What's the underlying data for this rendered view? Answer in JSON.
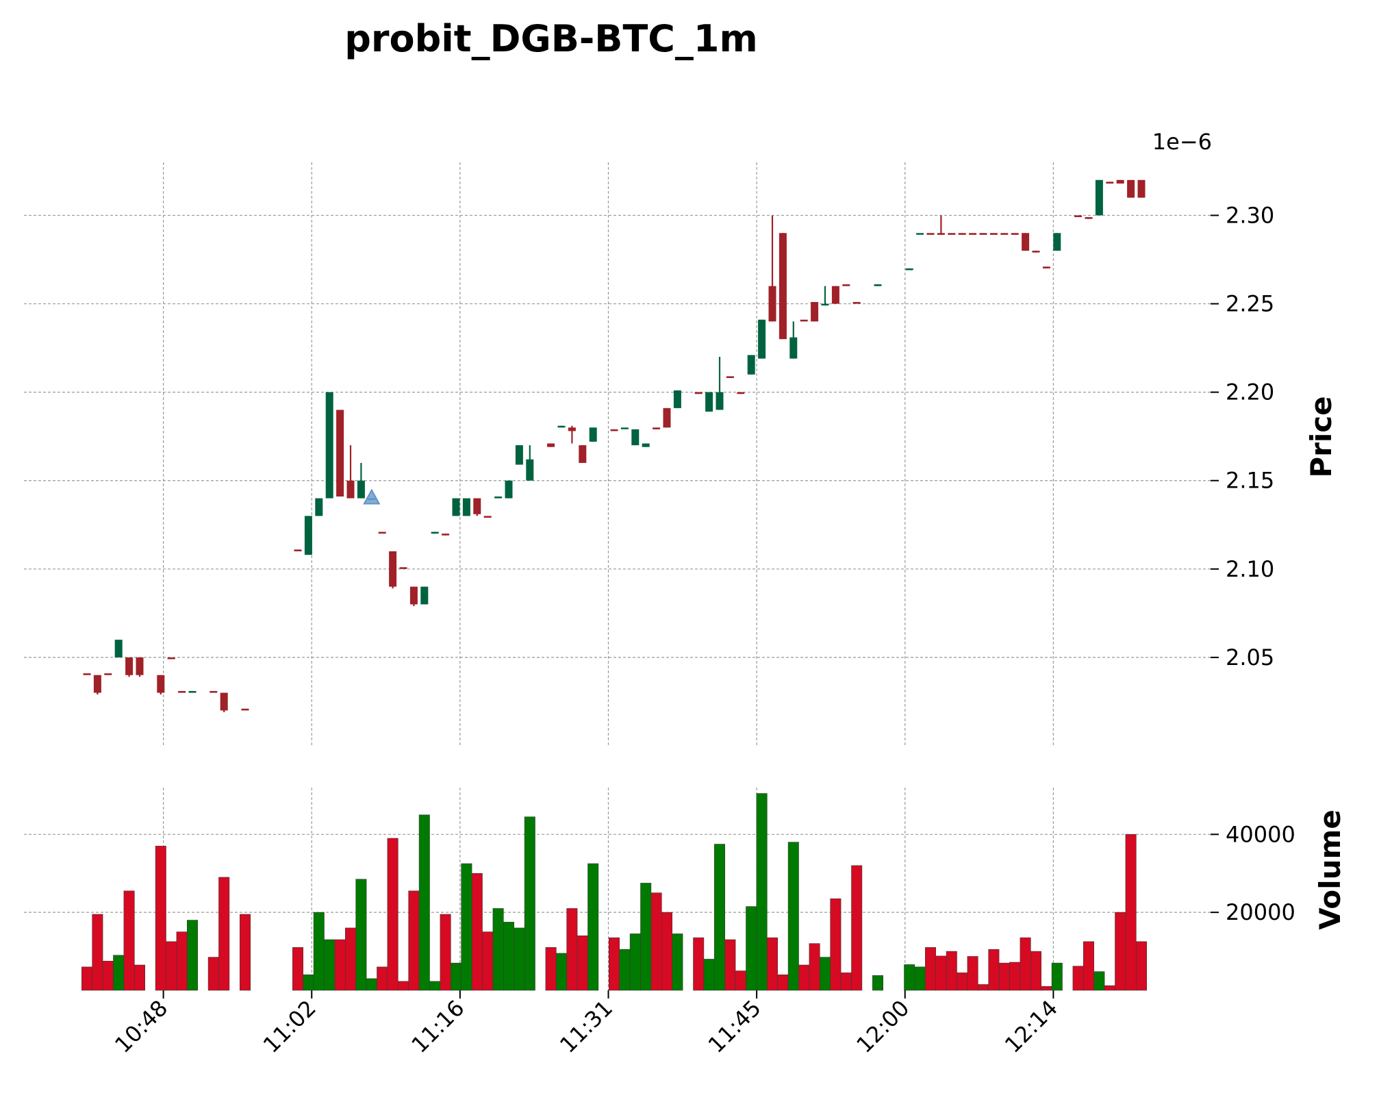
{
  "chart_data": {
    "type": "candlestick",
    "title": "probit_DGB-BTC_1m",
    "price_panel": {
      "ylabel": "Price",
      "offset_label": "1e−6",
      "yticks": [
        "2.05",
        "2.10",
        "2.15",
        "2.20",
        "2.25",
        "2.30"
      ],
      "ylim": [
        2.0,
        2.33
      ]
    },
    "volume_panel": {
      "ylabel": "Volume",
      "yticks": [
        "20000",
        "40000"
      ],
      "ylim": [
        0,
        52000
      ]
    },
    "xlabel": "",
    "xticks": [
      "10:48",
      "11:02",
      "11:16",
      "11:31",
      "11:45",
      "12:00",
      "12:14"
    ],
    "grid": true,
    "colors": {
      "up": "#006340",
      "down": "#A02128",
      "vol_up": "#007A00",
      "vol_down": "#D60A22",
      "marker": "#6A9FD4"
    },
    "candles": [
      {
        "o": 2.041,
        "h": 2.041,
        "l": 2.041,
        "c": 2.04,
        "v": 6000
      },
      {
        "o": 2.04,
        "h": 2.04,
        "l": 2.029,
        "c": 2.03,
        "v": 19500
      },
      {
        "o": 2.041,
        "h": 2.041,
        "l": 2.041,
        "c": 2.04,
        "v": 7500
      },
      {
        "o": 2.05,
        "h": 2.06,
        "l": 2.05,
        "c": 2.06,
        "v": 9000
      },
      {
        "o": 2.05,
        "h": 2.05,
        "l": 2.039,
        "c": 2.04,
        "v": 25500
      },
      {
        "o": 2.05,
        "h": 2.05,
        "l": 2.039,
        "c": 2.04,
        "v": 6500
      },
      null,
      {
        "o": 2.04,
        "h": 2.04,
        "l": 2.029,
        "c": 2.03,
        "v": 37000
      },
      {
        "o": 2.05,
        "h": 2.05,
        "l": 2.05,
        "c": 2.049,
        "v": 12500
      },
      {
        "o": 2.031,
        "h": 2.031,
        "l": 2.031,
        "c": 2.03,
        "v": 15000
      },
      {
        "o": 2.03,
        "h": 2.031,
        "l": 2.03,
        "c": 2.031,
        "v": 18000
      },
      null,
      {
        "o": 2.031,
        "h": 2.031,
        "l": 2.031,
        "c": 2.03,
        "v": 8500
      },
      {
        "o": 2.03,
        "h": 2.03,
        "l": 2.019,
        "c": 2.02,
        "v": 29000
      },
      null,
      {
        "o": 2.021,
        "h": 2.021,
        "l": 2.021,
        "c": 2.02,
        "v": 19500
      },
      null,
      null,
      null,
      null,
      {
        "o": 2.111,
        "h": 2.111,
        "l": 2.111,
        "c": 2.11,
        "v": 11000
      },
      {
        "o": 2.108,
        "h": 2.13,
        "l": 2.108,
        "c": 2.13,
        "v": 4000
      },
      {
        "o": 2.13,
        "h": 2.14,
        "l": 2.13,
        "c": 2.14,
        "v": 20000
      },
      {
        "o": 2.14,
        "h": 2.2,
        "l": 2.14,
        "c": 2.2,
        "v": 13000
      },
      {
        "o": 2.19,
        "h": 2.19,
        "l": 2.141,
        "c": 2.141,
        "v": 13000
      },
      {
        "o": 2.15,
        "h": 2.17,
        "l": 2.14,
        "c": 2.14,
        "v": 16000
      },
      {
        "o": 2.14,
        "h": 2.16,
        "l": 2.14,
        "c": 2.15,
        "v": 28500
      },
      {
        "o": 2.14,
        "h": 2.14,
        "l": 2.14,
        "c": 2.14,
        "v": 3000
      },
      {
        "o": 2.121,
        "h": 2.121,
        "l": 2.121,
        "c": 2.12,
        "v": 6000
      },
      {
        "o": 2.11,
        "h": 2.11,
        "l": 2.089,
        "c": 2.09,
        "v": 39000
      },
      {
        "o": 2.101,
        "h": 2.101,
        "l": 2.101,
        "c": 2.1,
        "v": 2300
      },
      {
        "o": 2.09,
        "h": 2.09,
        "l": 2.079,
        "c": 2.08,
        "v": 25500
      },
      {
        "o": 2.08,
        "h": 2.09,
        "l": 2.08,
        "c": 2.09,
        "v": 45000
      },
      {
        "o": 2.12,
        "h": 2.121,
        "l": 2.12,
        "c": 2.121,
        "v": 2300
      },
      {
        "o": 2.12,
        "h": 2.12,
        "l": 2.119,
        "c": 2.119,
        "v": 19500
      },
      {
        "o": 2.13,
        "h": 2.14,
        "l": 2.13,
        "c": 2.14,
        "v": 7000
      },
      {
        "o": 2.13,
        "h": 2.14,
        "l": 2.13,
        "c": 2.14,
        "v": 32500
      },
      {
        "o": 2.14,
        "h": 2.14,
        "l": 2.13,
        "c": 2.131,
        "v": 30000
      },
      {
        "o": 2.13,
        "h": 2.13,
        "l": 2.13,
        "c": 2.129,
        "v": 15000
      },
      {
        "o": 2.14,
        "h": 2.141,
        "l": 2.14,
        "c": 2.141,
        "v": 21000
      },
      {
        "o": 2.14,
        "h": 2.15,
        "l": 2.14,
        "c": 2.15,
        "v": 17500
      },
      {
        "o": 2.159,
        "h": 2.17,
        "l": 2.159,
        "c": 2.17,
        "v": 16000
      },
      {
        "o": 2.15,
        "h": 2.17,
        "l": 2.15,
        "c": 2.162,
        "v": 44500
      },
      null,
      {
        "o": 2.171,
        "h": 2.171,
        "l": 2.169,
        "c": 2.169,
        "v": 11000
      },
      {
        "o": 2.18,
        "h": 2.181,
        "l": 2.18,
        "c": 2.181,
        "v": 9500
      },
      {
        "o": 2.18,
        "h": 2.181,
        "l": 2.171,
        "c": 2.178,
        "v": 21000
      },
      {
        "o": 2.17,
        "h": 2.17,
        "l": 2.16,
        "c": 2.16,
        "v": 14000
      },
      {
        "o": 2.172,
        "h": 2.18,
        "l": 2.172,
        "c": 2.18,
        "v": 32500
      },
      null,
      {
        "o": 2.179,
        "h": 2.179,
        "l": 2.178,
        "c": 2.178,
        "v": 13500
      },
      {
        "o": 2.18,
        "h": 2.18,
        "l": 2.18,
        "c": 2.18,
        "v": 10500
      },
      {
        "o": 2.17,
        "h": 2.179,
        "l": 2.17,
        "c": 2.179,
        "v": 14500
      },
      {
        "o": 2.169,
        "h": 2.171,
        "l": 2.169,
        "c": 2.171,
        "v": 27500
      },
      {
        "o": 2.18,
        "h": 2.18,
        "l": 2.179,
        "c": 2.179,
        "v": 25000
      },
      {
        "o": 2.191,
        "h": 2.191,
        "l": 2.18,
        "c": 2.18,
        "v": 20000
      },
      {
        "o": 2.191,
        "h": 2.201,
        "l": 2.191,
        "c": 2.201,
        "v": 14500
      },
      null,
      {
        "o": 2.2,
        "h": 2.2,
        "l": 2.199,
        "c": 2.199,
        "v": 13500
      },
      {
        "o": 2.189,
        "h": 2.2,
        "l": 2.189,
        "c": 2.2,
        "v": 8000
      },
      {
        "o": 2.19,
        "h": 2.22,
        "l": 2.19,
        "c": 2.2,
        "v": 37500
      },
      {
        "o": 2.209,
        "h": 2.209,
        "l": 2.209,
        "c": 2.208,
        "v": 13000
      },
      {
        "o": 2.2,
        "h": 2.2,
        "l": 2.199,
        "c": 2.199,
        "v": 5000
      },
      {
        "o": 2.21,
        "h": 2.221,
        "l": 2.21,
        "c": 2.221,
        "v": 21500
      },
      {
        "o": 2.219,
        "h": 2.241,
        "l": 2.219,
        "c": 2.241,
        "v": 50500
      },
      {
        "o": 2.26,
        "h": 2.3,
        "l": 2.24,
        "c": 2.24,
        "v": 13500
      },
      {
        "o": 2.29,
        "h": 2.29,
        "l": 2.23,
        "c": 2.23,
        "v": 4000
      },
      {
        "o": 2.219,
        "h": 2.24,
        "l": 2.219,
        "c": 2.231,
        "v": 38000
      },
      {
        "o": 2.241,
        "h": 2.241,
        "l": 2.241,
        "c": 2.24,
        "v": 6500
      },
      {
        "o": 2.251,
        "h": 2.251,
        "l": 2.24,
        "c": 2.24,
        "v": 12000
      },
      {
        "o": 2.25,
        "h": 2.26,
        "l": 2.249,
        "c": 2.25,
        "v": 8500
      },
      {
        "o": 2.26,
        "h": 2.26,
        "l": 2.25,
        "c": 2.25,
        "v": 23500
      },
      {
        "o": 2.261,
        "h": 2.261,
        "l": 2.261,
        "c": 2.26,
        "v": 4500
      },
      {
        "o": 2.251,
        "h": 2.251,
        "l": 2.251,
        "c": 2.25,
        "v": 32000
      },
      null,
      {
        "o": 2.26,
        "h": 2.261,
        "l": 2.26,
        "c": 2.261,
        "v": 3800
      },
      null,
      null,
      {
        "o": 2.269,
        "h": 2.27,
        "l": 2.269,
        "c": 2.27,
        "v": 6600
      },
      {
        "o": 2.29,
        "h": 2.29,
        "l": 2.29,
        "c": 2.29,
        "v": 6000
      },
      {
        "o": 2.29,
        "h": 2.29,
        "l": 2.29,
        "c": 2.289,
        "v": 11000
      },
      {
        "o": 2.29,
        "h": 2.3,
        "l": 2.289,
        "c": 2.289,
        "v": 8800
      },
      {
        "o": 2.29,
        "h": 2.29,
        "l": 2.29,
        "c": 2.289,
        "v": 10000
      },
      {
        "o": 2.29,
        "h": 2.29,
        "l": 2.29,
        "c": 2.289,
        "v": 4500
      },
      {
        "o": 2.29,
        "h": 2.29,
        "l": 2.29,
        "c": 2.289,
        "v": 8700
      },
      {
        "o": 2.29,
        "h": 2.29,
        "l": 2.29,
        "c": 2.289,
        "v": 1500
      },
      {
        "o": 2.29,
        "h": 2.29,
        "l": 2.29,
        "c": 2.289,
        "v": 10500
      },
      {
        "o": 2.29,
        "h": 2.29,
        "l": 2.29,
        "c": 2.289,
        "v": 7000
      },
      {
        "o": 2.29,
        "h": 2.29,
        "l": 2.29,
        "c": 2.289,
        "v": 7200
      },
      {
        "o": 2.29,
        "h": 2.29,
        "l": 2.28,
        "c": 2.28,
        "v": 13500
      },
      {
        "o": 2.28,
        "h": 2.28,
        "l": 2.279,
        "c": 2.279,
        "v": 10000
      },
      {
        "o": 2.271,
        "h": 2.271,
        "l": 2.27,
        "c": 2.27,
        "v": 1000
      },
      {
        "o": 2.28,
        "h": 2.29,
        "l": 2.28,
        "c": 2.29,
        "v": 7000
      },
      null,
      {
        "o": 2.3,
        "h": 2.3,
        "l": 2.3,
        "c": 2.299,
        "v": 6200
      },
      {
        "o": 2.299,
        "h": 2.299,
        "l": 2.298,
        "c": 2.298,
        "v": 12500
      },
      {
        "o": 2.3,
        "h": 2.32,
        "l": 2.3,
        "c": 2.32,
        "v": 4800
      },
      {
        "o": 2.319,
        "h": 2.319,
        "l": 2.318,
        "c": 2.318,
        "v": 1200
      },
      {
        "o": 2.32,
        "h": 2.32,
        "l": 2.318,
        "c": 2.318,
        "v": 20000
      },
      {
        "o": 2.32,
        "h": 2.32,
        "l": 2.31,
        "c": 2.31,
        "v": 40000
      },
      {
        "o": 2.32,
        "h": 2.32,
        "l": 2.31,
        "c": 2.31,
        "v": 12500
      }
    ],
    "markers": [
      {
        "index": 27,
        "price": 2.14,
        "shape": "triangle-up"
      }
    ]
  }
}
